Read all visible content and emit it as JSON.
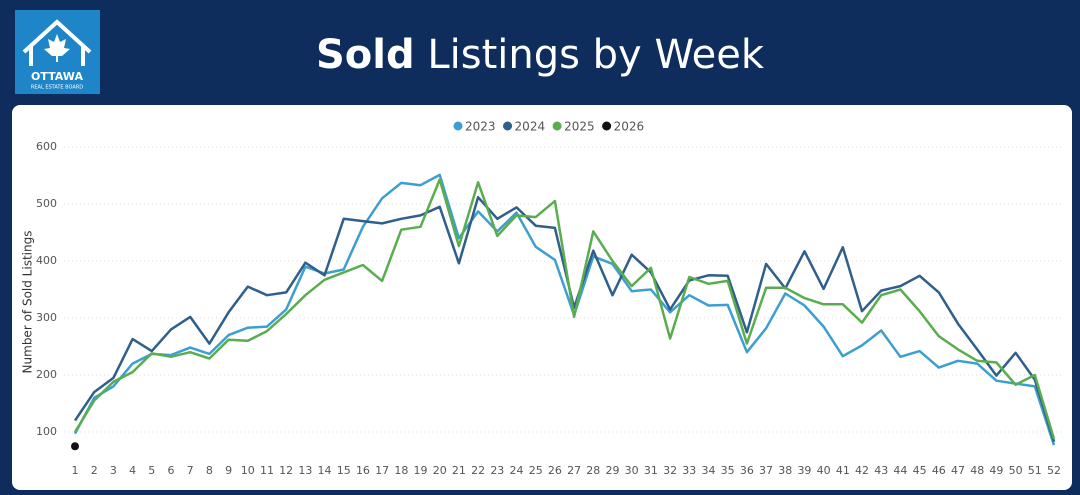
{
  "header": {
    "title_bold": "Sold",
    "title_rest": "Listings by Week",
    "logo_name": "OTTAWA",
    "logo_sub": "REAL ESTATE BOARD"
  },
  "chart_data": {
    "type": "line",
    "y_label": "Number of Sold Listings",
    "categories": [
      "1",
      "2",
      "3",
      "4",
      "5",
      "6",
      "7",
      "8",
      "9",
      "10",
      "11",
      "12",
      "13",
      "14",
      "15",
      "16",
      "17",
      "18",
      "19",
      "20",
      "21",
      "22",
      "23",
      "24",
      "25",
      "26",
      "27",
      "28",
      "29",
      "30",
      "31",
      "32",
      "33",
      "34",
      "35",
      "36",
      "37",
      "38",
      "39",
      "40",
      "41",
      "42",
      "43",
      "44",
      "45",
      "46",
      "47",
      "48",
      "49",
      "50",
      "51",
      "52"
    ],
    "ylim": [
      50,
      600
    ],
    "yticks": [
      100,
      200,
      300,
      400,
      500,
      600
    ],
    "grid": true,
    "legend": "top",
    "series": [
      {
        "name": "2023",
        "color": "#3d9fd0",
        "values": [
          97,
          160,
          180,
          220,
          237,
          235,
          248,
          237,
          270,
          283,
          285,
          315,
          390,
          378,
          385,
          460,
          510,
          537,
          533,
          551,
          440,
          487,
          452,
          485,
          425,
          402,
          305,
          408,
          395,
          347,
          350,
          310,
          340,
          322,
          323,
          240,
          282,
          343,
          322,
          285,
          233,
          252,
          278,
          232,
          242,
          213,
          225,
          220,
          190,
          185,
          180,
          77
        ]
      },
      {
        "name": "2024",
        "color": "#2f5f8a",
        "values": [
          120,
          170,
          195,
          263,
          242,
          280,
          302,
          255,
          310,
          355,
          340,
          345,
          397,
          375,
          474,
          470,
          466,
          474,
          480,
          495,
          396,
          512,
          474,
          494,
          462,
          458,
          318,
          418,
          340,
          411,
          380,
          315,
          366,
          375,
          374,
          275,
          395,
          352,
          417,
          351,
          424,
          312,
          348,
          356,
          374,
          345,
          290,
          245,
          199,
          239,
          192,
          83
        ]
      },
      {
        "name": "2025",
        "color": "#5aad4f",
        "values": [
          100,
          155,
          188,
          205,
          238,
          232,
          240,
          229,
          262,
          260,
          277,
          307,
          340,
          367,
          380,
          393,
          365,
          455,
          460,
          543,
          426,
          538,
          444,
          480,
          477,
          505,
          302,
          452,
          400,
          356,
          388,
          264,
          372,
          360,
          365,
          255,
          353,
          353,
          335,
          324,
          324,
          292,
          340,
          350,
          312,
          268,
          245,
          225,
          222,
          183,
          200,
          88
        ]
      },
      {
        "name": "2026",
        "color": "#111111",
        "values": [
          75,
          null,
          null,
          null,
          null,
          null,
          null,
          null,
          null,
          null,
          null,
          null,
          null,
          null,
          null,
          null,
          null,
          null,
          null,
          null,
          null,
          null,
          null,
          null,
          null,
          null,
          null,
          null,
          null,
          null,
          null,
          null,
          null,
          null,
          null,
          null,
          null,
          null,
          null,
          null,
          null,
          null,
          null,
          null,
          null,
          null,
          null,
          null,
          null,
          null,
          null,
          null
        ]
      }
    ]
  }
}
